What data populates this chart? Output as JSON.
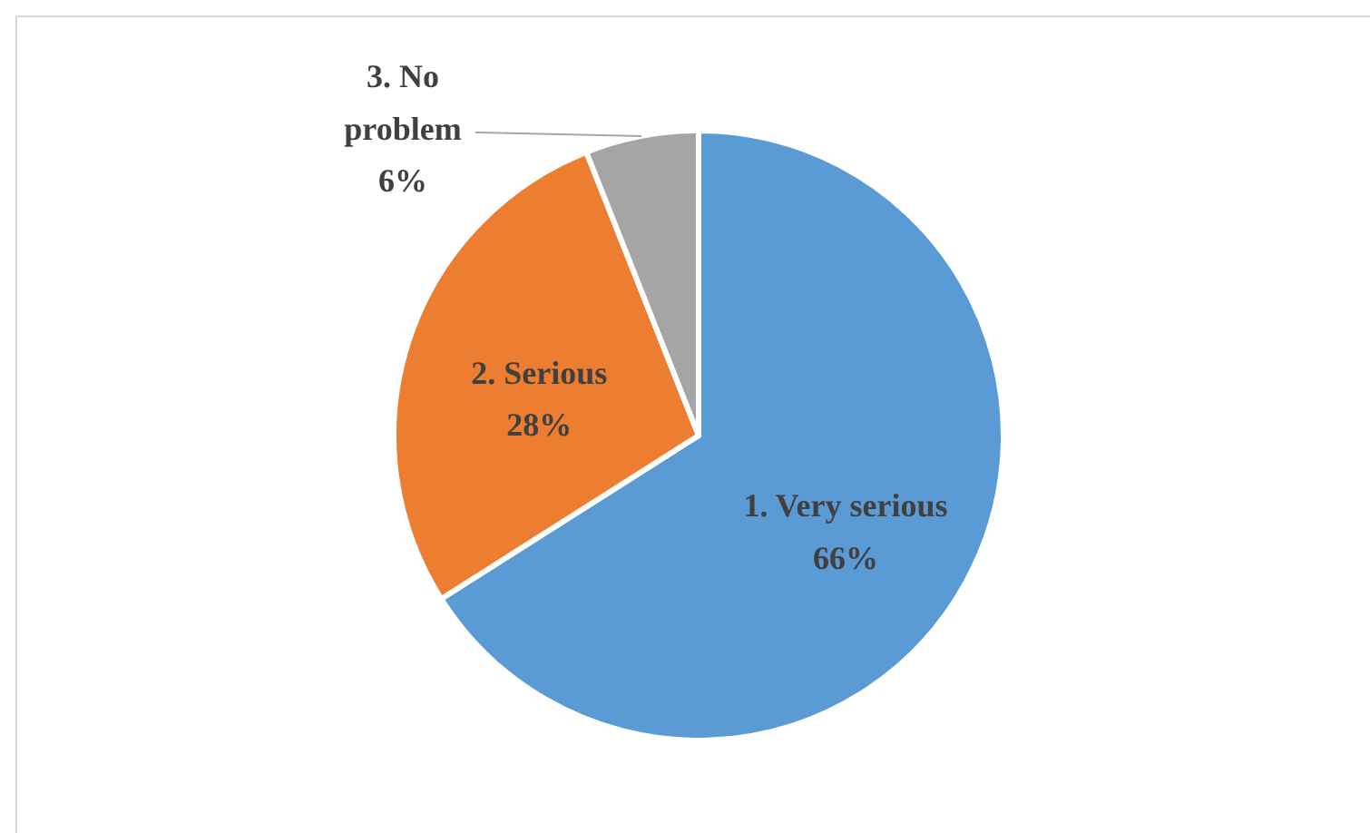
{
  "chart_data": {
    "type": "pie",
    "categories": [
      "1. Very serious",
      "2. Serious",
      "3. No problem"
    ],
    "values": [
      66,
      28,
      6
    ],
    "value_labels": [
      "66%",
      "28%",
      "6%"
    ],
    "colors": [
      "#5b9bd5",
      "#ed7d31",
      "#a5a5a5"
    ]
  }
}
